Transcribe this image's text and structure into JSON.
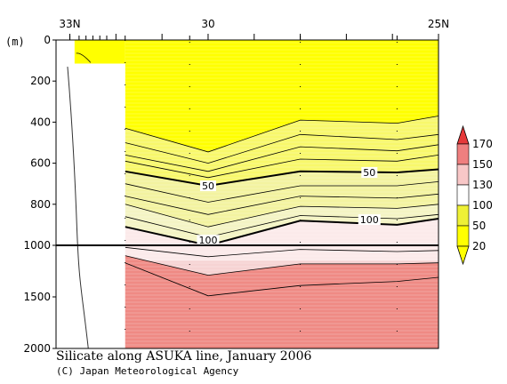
{
  "chart_data": {
    "type": "contour",
    "title": "Silicate along ASUKA line, January 2006",
    "credit": "(C) Japan Meteorological Agency",
    "y_unit": "(m)",
    "x_ticks": [
      {
        "lat": 33,
        "label": "33N"
      },
      {
        "lat": 30,
        "label": "30"
      },
      {
        "lat": 25,
        "label": "25N"
      }
    ],
    "xlim": [
      33.3,
      25.0
    ],
    "y_upper": {
      "range": [
        0,
        1000
      ],
      "ticks": [
        0,
        200,
        400,
        600,
        800,
        1000
      ]
    },
    "y_lower": {
      "range": [
        1000,
        2000
      ],
      "ticks": [
        1500,
        2000
      ]
    },
    "station_lats": [
      33.0,
      32.8,
      32.65,
      32.5,
      32.35,
      32.2,
      31.8,
      30.4,
      28.0,
      25.9
    ],
    "legend": {
      "levels": [
        "170",
        "150",
        "130",
        "100",
        "50",
        "20"
      ],
      "colors": [
        "#e6393a",
        "#ef7f7f",
        "#f8c7c7",
        "#ffffff",
        "#eef036",
        "#ffff00"
      ]
    },
    "contour_labels": [
      {
        "value": "50",
        "lat": 30.0,
        "depth": 710
      },
      {
        "value": "50",
        "lat": 26.5,
        "depth": 645
      },
      {
        "value": "100",
        "lat": 30.0,
        "depth": 975
      },
      {
        "value": "100",
        "lat": 26.5,
        "depth": 875
      }
    ]
  }
}
